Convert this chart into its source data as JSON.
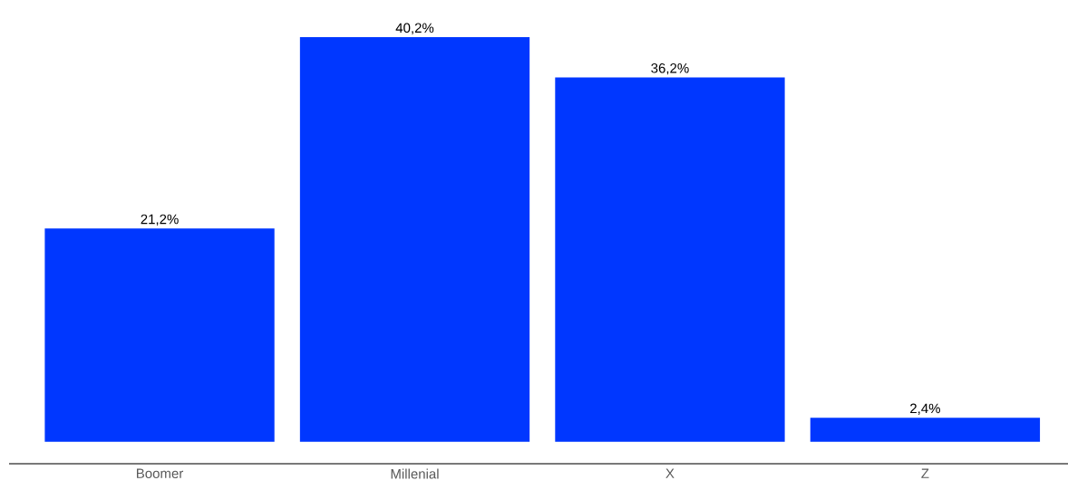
{
  "chart_data": {
    "type": "bar",
    "categories": [
      "Boomer",
      "Millenial",
      "X",
      "Z"
    ],
    "values": [
      21.2,
      40.2,
      36.2,
      2.4
    ],
    "color": "#0037ff",
    "value_labels": [
      "21,2%",
      "40,2%",
      "36,2%",
      "2,4%"
    ]
  }
}
